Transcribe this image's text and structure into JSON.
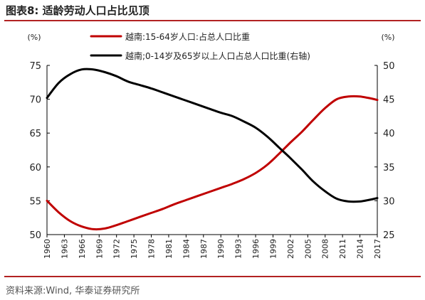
{
  "header": {
    "title": "图表8:   适龄劳动人口占比见顶"
  },
  "footer": {
    "source": "资料来源:Wind, 华泰证券研究所"
  },
  "chart_data": {
    "type": "line",
    "title": "",
    "y_left_unit": "(%)",
    "y_right_unit": "(%)",
    "y_left_lim": [
      50,
      75
    ],
    "y_left_ticks": [
      50,
      55,
      60,
      65,
      70,
      75
    ],
    "y_right_lim": [
      25,
      50
    ],
    "y_right_ticks": [
      25,
      30,
      35,
      40,
      45,
      50
    ],
    "x_ticks": [
      "1960",
      "1963",
      "1966",
      "1969",
      "1972",
      "1975",
      "1978",
      "1981",
      "1984",
      "1987",
      "1990",
      "1993",
      "1996",
      "1999",
      "2002",
      "2005",
      "2008",
      "2011",
      "2014",
      "2017"
    ],
    "legend_position": "top",
    "grid": false,
    "series": [
      {
        "name": "越南:15-64岁人口:占总人口比重",
        "axis": "left",
        "color": "#c00000",
        "x": [
          1960,
          1962,
          1964,
          1966,
          1968,
          1970,
          1972,
          1974,
          1976,
          1978,
          1980,
          1982,
          1984,
          1986,
          1988,
          1990,
          1992,
          1994,
          1996,
          1998,
          2000,
          2002,
          2004,
          2006,
          2008,
          2010,
          2012,
          2014,
          2016,
          2017
        ],
        "values": [
          55.0,
          53.3,
          52.0,
          51.2,
          50.8,
          50.9,
          51.4,
          52.0,
          52.6,
          53.2,
          53.8,
          54.5,
          55.1,
          55.7,
          56.3,
          56.9,
          57.5,
          58.2,
          59.1,
          60.3,
          61.9,
          63.6,
          65.2,
          67.0,
          68.7,
          70.0,
          70.4,
          70.4,
          70.1,
          69.9
        ]
      },
      {
        "name": "越南;0-14岁及65岁以上人口占总人口比重(右轴)",
        "axis": "right",
        "color": "#000000",
        "x": [
          1960,
          1962,
          1964,
          1966,
          1968,
          1970,
          1972,
          1974,
          1976,
          1978,
          1980,
          1982,
          1984,
          1986,
          1988,
          1990,
          1992,
          1994,
          1996,
          1998,
          2000,
          2002,
          2004,
          2006,
          2008,
          2010,
          2012,
          2014,
          2016,
          2017
        ],
        "values": [
          45.2,
          47.4,
          48.7,
          49.4,
          49.4,
          49.0,
          48.4,
          47.6,
          47.1,
          46.6,
          46.0,
          45.4,
          44.8,
          44.2,
          43.6,
          43.0,
          42.5,
          41.7,
          40.8,
          39.5,
          37.9,
          36.3,
          34.6,
          32.8,
          31.4,
          30.3,
          29.9,
          29.9,
          30.2,
          30.4
        ]
      }
    ]
  }
}
